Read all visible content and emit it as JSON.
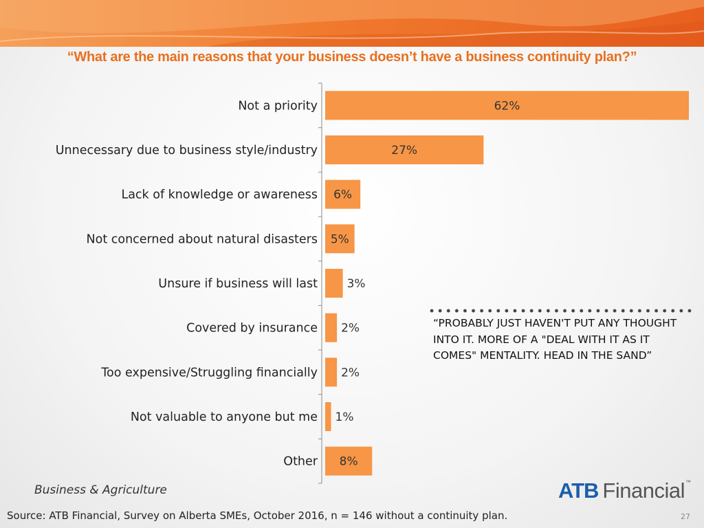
{
  "slide": {
    "title": "“What are the main reasons that your business doesn’t have a business continuity plan?”",
    "quote": "“PROBABLY JUST HAVEN'T PUT ANY THOUGHT INTO IT.  MORE OF A \"DEAL WITH IT AS IT COMES\" MENTALITY. HEAD IN THE SAND”",
    "section_label": "Business & Agriculture",
    "source": "Source:  ATB Financial, Survey on Alberta SMEs, October 2016, n = 146 without a continuity plan.",
    "page_number": "27",
    "logo": {
      "brand": "ATB",
      "word": "Financial",
      "tm": "™"
    }
  },
  "colors": {
    "bar": "#f79646",
    "title": "#e8701e",
    "banner_light": "#f7a55a",
    "banner_dark": "#e85e1c",
    "logo_blue": "#1b5eab"
  },
  "chart_data": {
    "type": "bar",
    "orientation": "horizontal",
    "categories": [
      "Not a priority",
      "Unnecessary due to business style/industry",
      "Lack of knowledge or awareness",
      "Not concerned about natural disasters",
      "Unsure if business will last",
      "Covered by insurance",
      "Too expensive/Struggling financially",
      "Not valuable to anyone but me",
      "Other"
    ],
    "values": [
      62,
      27,
      6,
      5,
      3,
      2,
      2,
      1,
      8
    ],
    "labels": [
      "62%",
      "27%",
      "6%",
      "5%",
      "3%",
      "2%",
      "2%",
      "1%",
      "8%"
    ],
    "xlim": [
      0,
      62
    ],
    "grid": false,
    "legend": "none"
  }
}
